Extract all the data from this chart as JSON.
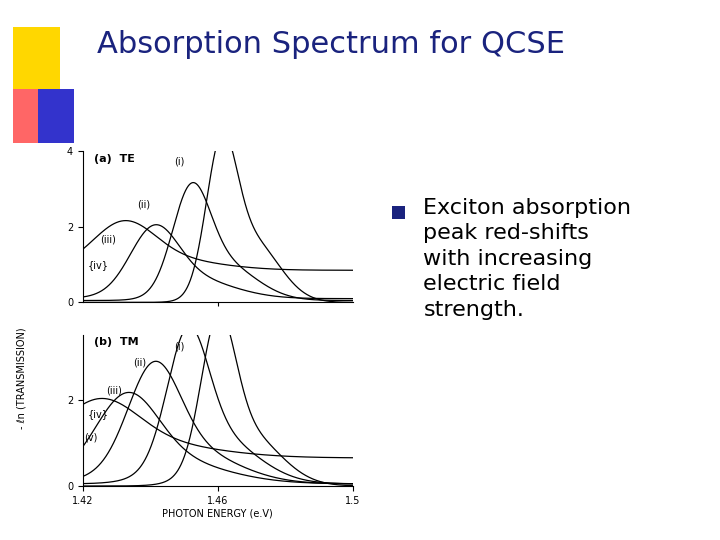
{
  "title": "Absorption Spectrum for QCSE",
  "title_color": "#1a237e",
  "title_fontsize": 22,
  "background_color": "#ffffff",
  "bullet_text_lines": [
    "Exciton absorption",
    "peak red-shifts",
    "with increasing",
    "electric field",
    "strength."
  ],
  "bullet_fontsize": 16,
  "bullet_color": "#1a237e",
  "plot_xlim": [
    1.42,
    1.5
  ],
  "plot_xticks": [
    1.42,
    1.46,
    1.5
  ],
  "plot_xlabel": "PHOTON ENERGY (e.V)",
  "plot_ylabel": "- ℓn (TRANSMISSION)",
  "te_label": "(a)  TE",
  "tm_label": "(b)  TM"
}
